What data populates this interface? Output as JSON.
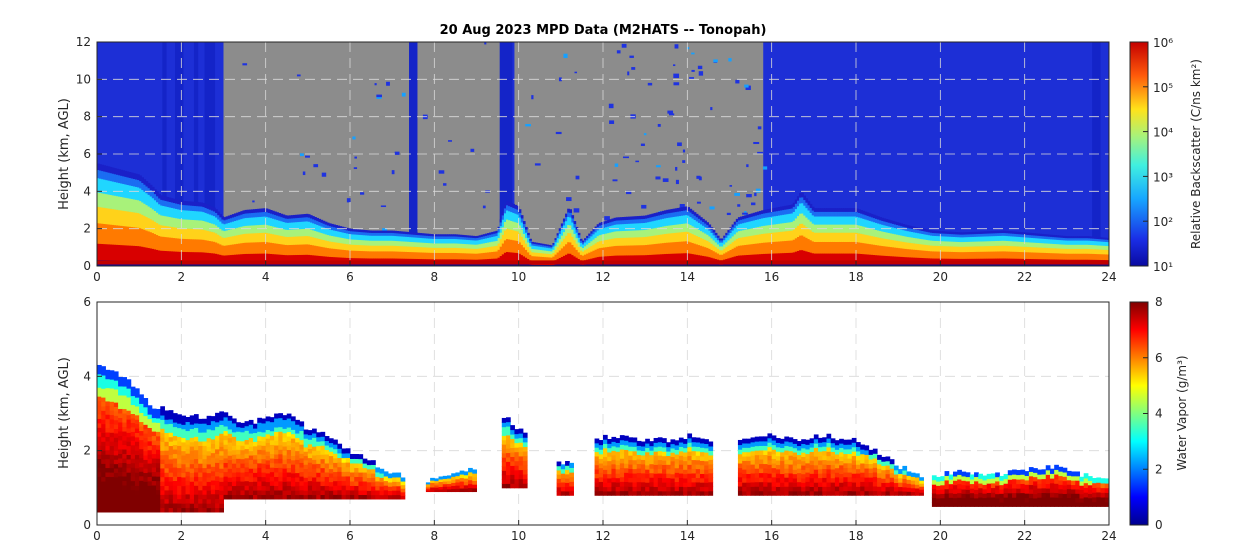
{
  "chart_data": [
    {
      "type": "heatmap",
      "title": "20 Aug 2023 MPD Data (M2HATS -- Tonopah)",
      "xlabel": "",
      "ylabel": "Height (km, AGL)",
      "xlim": [
        0,
        24
      ],
      "ylim": [
        0,
        12
      ],
      "xticks": [
        0,
        2,
        4,
        6,
        8,
        10,
        12,
        14,
        16,
        18,
        20,
        22,
        24
      ],
      "yticks": [
        0,
        2,
        4,
        6,
        8,
        10,
        12
      ],
      "grid": true,
      "colorbar": {
        "label": "Relative Backscatter (C/ns km²)",
        "scale": "log",
        "tick_labels": [
          "10¹",
          "10²",
          "10³",
          "10⁴",
          "10⁵",
          "10⁶"
        ],
        "range_log10": [
          1,
          6
        ],
        "colormap": "jet"
      },
      "mask_color": "#8c8c8c",
      "cloud_top_km": [
        [
          0,
          5.5
        ],
        [
          0.5,
          5.2
        ],
        [
          1.0,
          4.9
        ],
        [
          1.3,
          4.3
        ],
        [
          1.5,
          3.8
        ],
        [
          2.0,
          3.5
        ],
        [
          2.5,
          3.4
        ],
        [
          2.8,
          3.1
        ],
        [
          3.0,
          2.6
        ],
        [
          3.5,
          3.0
        ],
        [
          4.0,
          3.1
        ],
        [
          4.5,
          2.7
        ],
        [
          5.0,
          2.8
        ],
        [
          5.5,
          2.3
        ],
        [
          6.0,
          2.0
        ],
        [
          6.5,
          1.9
        ],
        [
          7.0,
          1.9
        ],
        [
          7.5,
          1.8
        ],
        [
          8.0,
          1.7
        ],
        [
          8.5,
          1.7
        ],
        [
          9.0,
          1.6
        ],
        [
          9.5,
          1.9
        ],
        [
          9.7,
          3.5
        ],
        [
          10.0,
          3.2
        ],
        [
          10.3,
          1.3
        ],
        [
          10.8,
          1.1
        ],
        [
          11.2,
          3.2
        ],
        [
          11.5,
          1.3
        ],
        [
          11.9,
          2.3
        ],
        [
          12.3,
          2.6
        ],
        [
          13.0,
          2.7
        ],
        [
          13.5,
          3.0
        ],
        [
          14.0,
          3.2
        ],
        [
          14.5,
          2.3
        ],
        [
          14.8,
          1.4
        ],
        [
          15.2,
          2.6
        ],
        [
          15.8,
          3.0
        ],
        [
          16.5,
          3.3
        ],
        [
          16.7,
          4.0
        ],
        [
          17.0,
          3.1
        ],
        [
          18.0,
          3.1
        ],
        [
          18.6,
          2.6
        ],
        [
          19.2,
          2.2
        ],
        [
          19.8,
          1.9
        ],
        [
          20.5,
          1.8
        ],
        [
          21.5,
          1.9
        ],
        [
          22.5,
          1.7
        ],
        [
          23.0,
          1.6
        ],
        [
          23.5,
          1.6
        ],
        [
          24.0,
          1.5
        ]
      ],
      "signal_to_12km_intervals": [
        [
          0,
          3.0
        ],
        [
          9.6,
          9.9
        ],
        [
          15.8,
          24.0
        ]
      ],
      "streaks": [
        [
          1.55,
          1.65
        ],
        [
          1.85,
          2.05
        ],
        [
          2.3,
          2.4
        ],
        [
          2.55,
          2.8
        ],
        [
          7.4,
          7.6
        ],
        [
          9.55,
          9.85
        ],
        [
          23.6,
          23.8
        ]
      ]
    },
    {
      "type": "heatmap",
      "title": "",
      "xlabel": "",
      "ylabel": "Height (km, AGL)",
      "xlim": [
        0,
        24
      ],
      "ylim": [
        0,
        6
      ],
      "xticks": [
        0,
        2,
        4,
        6,
        8,
        10,
        12,
        14,
        16,
        18,
        20,
        22,
        24
      ],
      "yticks": [
        0,
        2,
        4,
        6
      ],
      "grid": true,
      "colorbar": {
        "label": "Water Vapor (g/m³)",
        "scale": "linear",
        "tick_labels": [
          "0",
          "2",
          "4",
          "6",
          "8"
        ],
        "range": [
          0,
          8
        ],
        "colormap": "jet"
      },
      "segments": [
        {
          "x": [
            0.0,
            1.5
          ],
          "bottom": 0.35,
          "top_km": [
            [
              0,
              4.3
            ],
            [
              0.3,
              4.2
            ],
            [
              0.6,
              4.0
            ],
            [
              0.8,
              3.8
            ],
            [
              1.0,
              3.6
            ],
            [
              1.2,
              3.3
            ],
            [
              1.5,
              3.1
            ]
          ]
        },
        {
          "x": [
            1.5,
            3.0
          ],
          "bottom": 0.35,
          "top_km": [
            [
              1.5,
              3.2
            ],
            [
              2.0,
              3.0
            ],
            [
              2.5,
              2.9
            ],
            [
              3.0,
              3.0
            ]
          ]
        },
        {
          "x": [
            3.0,
            7.3
          ],
          "bottom": 0.7,
          "top_km": [
            [
              3.0,
              3.1
            ],
            [
              3.5,
              2.7
            ],
            [
              4.0,
              2.9
            ],
            [
              4.5,
              3.0
            ],
            [
              5.0,
              2.6
            ],
            [
              5.5,
              2.4
            ],
            [
              6.0,
              2.0
            ],
            [
              6.5,
              1.7
            ],
            [
              7.0,
              1.4
            ],
            [
              7.3,
              1.3
            ]
          ]
        },
        {
          "x": [
            7.8,
            9.0
          ],
          "bottom": 0.9,
          "top_km": [
            [
              7.8,
              1.2
            ],
            [
              8.3,
              1.4
            ],
            [
              8.6,
              1.4
            ],
            [
              9.0,
              1.5
            ]
          ]
        },
        {
          "x": [
            9.6,
            10.2
          ],
          "bottom": 1.0,
          "top_km": [
            [
              9.6,
              2.9
            ],
            [
              9.8,
              2.8
            ],
            [
              10.0,
              2.6
            ],
            [
              10.2,
              2.4
            ]
          ]
        },
        {
          "x": [
            10.9,
            11.3
          ],
          "bottom": 0.8,
          "top_km": [
            [
              10.9,
              1.7
            ],
            [
              11.3,
              1.7
            ]
          ]
        },
        {
          "x": [
            11.8,
            14.6
          ],
          "bottom": 0.8,
          "top_km": [
            [
              11.8,
              2.3
            ],
            [
              12.2,
              2.4
            ],
            [
              13.0,
              2.3
            ],
            [
              13.6,
              2.3
            ],
            [
              14.0,
              2.4
            ],
            [
              14.6,
              2.3
            ]
          ]
        },
        {
          "x": [
            15.2,
            19.6
          ],
          "bottom": 0.8,
          "top_km": [
            [
              15.2,
              2.3
            ],
            [
              16.0,
              2.4
            ],
            [
              16.5,
              2.3
            ],
            [
              17.2,
              2.4
            ],
            [
              18.0,
              2.3
            ],
            [
              18.5,
              2.0
            ],
            [
              19.0,
              1.6
            ],
            [
              19.6,
              1.3
            ]
          ]
        },
        {
          "x": [
            19.8,
            24.0
          ],
          "bottom": 0.5,
          "top_km": [
            [
              19.8,
              1.3
            ],
            [
              20.5,
              1.5
            ],
            [
              21.0,
              1.3
            ],
            [
              22.0,
              1.5
            ],
            [
              22.8,
              1.6
            ],
            [
              23.5,
              1.3
            ],
            [
              24.0,
              1.2
            ]
          ]
        }
      ]
    }
  ]
}
